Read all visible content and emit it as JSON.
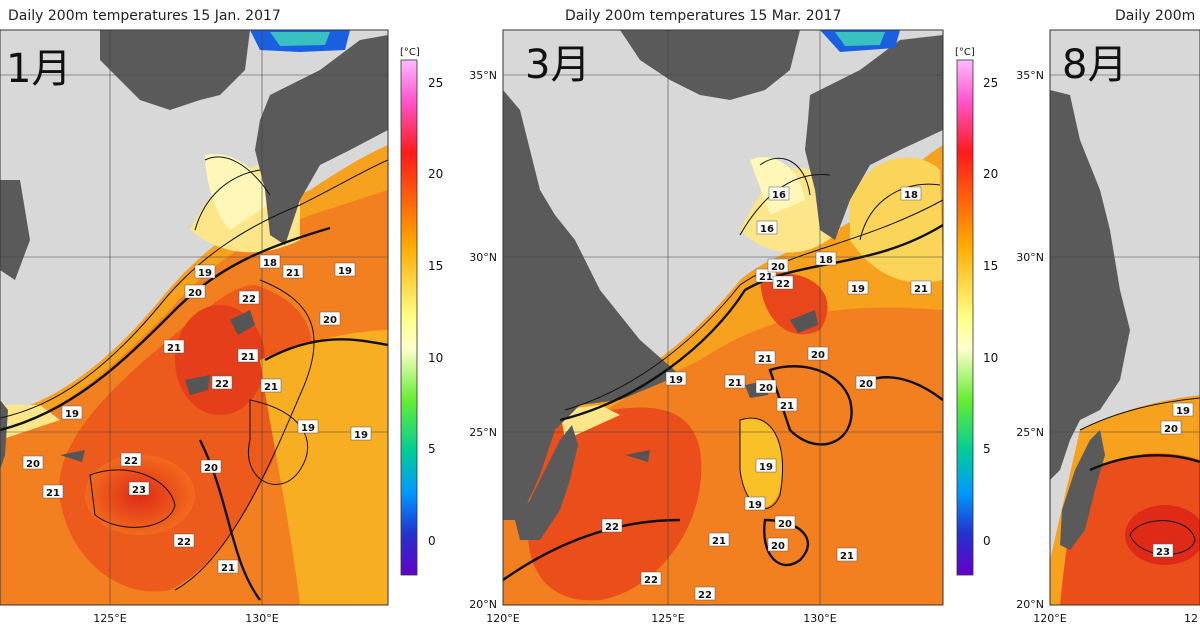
{
  "panels": [
    {
      "title": "Daily 200m temperatures 15 Jan. 2017",
      "month_label": "1月",
      "lat_labels": [],
      "lon_labels": [
        "125°E",
        "130°E"
      ],
      "contour_labels": [
        "18",
        "21",
        "19",
        "19",
        "20",
        "22",
        "20",
        "21",
        "21",
        "22",
        "21",
        "19",
        "19",
        "19",
        "20",
        "22",
        "20",
        "21",
        "23",
        "22",
        "21"
      ]
    },
    {
      "title": "Daily 200m temperatures 15 Mar. 2017",
      "month_label": "3月",
      "lat_labels": [
        "35°N",
        "30°N",
        "25°N",
        "20°N"
      ],
      "lon_labels": [
        "120°E",
        "125°E",
        "130°E"
      ],
      "contour_labels": [
        "16",
        "16",
        "18",
        "18",
        "21",
        "20",
        "22",
        "19",
        "21",
        "21",
        "19",
        "20",
        "21",
        "20",
        "20",
        "21",
        "19",
        "19",
        "22",
        "20",
        "21",
        "20",
        "21",
        "22",
        "22"
      ]
    },
    {
      "title": "Daily 200m",
      "month_label": "8月",
      "lat_labels": [
        "35°N",
        "30°N",
        "25°N",
        "20°N"
      ],
      "lon_labels": [
        "120°E",
        "12"
      ],
      "contour_labels": [
        "19",
        "20",
        "23"
      ]
    }
  ],
  "colorbar": {
    "unit": "[°C]",
    "ticks": [
      "25",
      "20",
      "15",
      "10",
      "5",
      "0"
    ],
    "colors": [
      "#ff66ff",
      "#ff1a1a",
      "#ffaa00",
      "#ffff66",
      "#ffffcc",
      "#66ff33",
      "#00cc99",
      "#0099ff",
      "#3333cc",
      "#6600cc"
    ]
  },
  "colors": {
    "land": "#5a5a5a",
    "nodata": "#d8d8d8",
    "sea_warm": "#f47a1a",
    "sea_hot": "#e2351a",
    "sea_mid": "#f9b522",
    "sea_cool": "#fde88a"
  }
}
